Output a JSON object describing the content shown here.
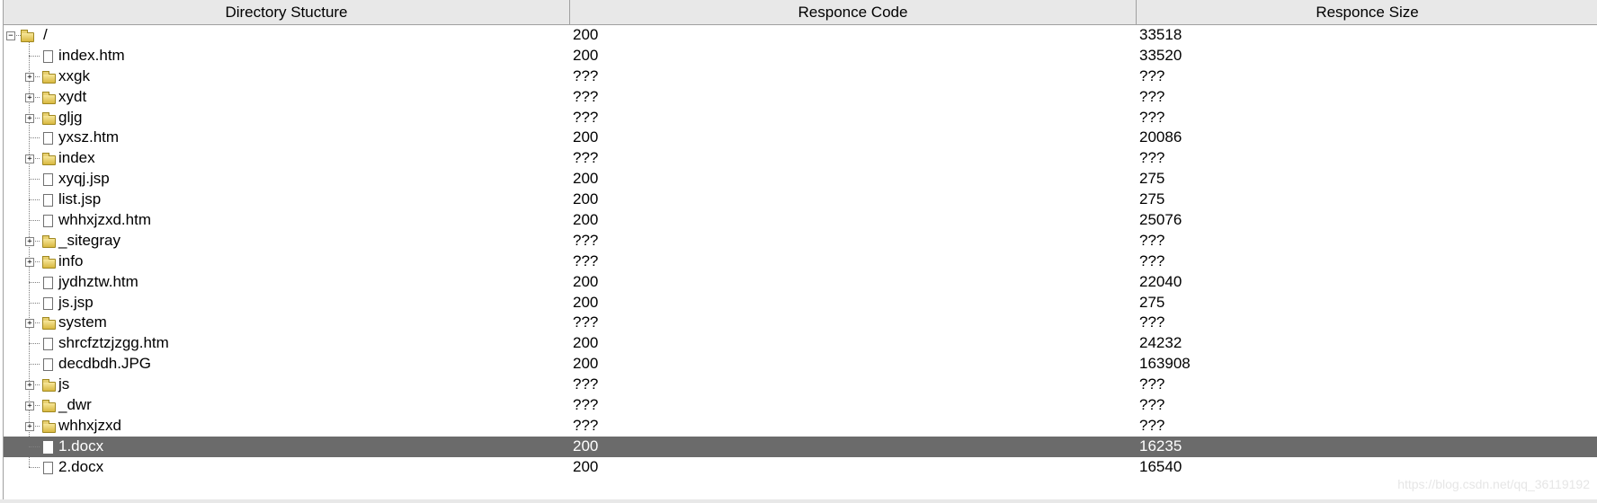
{
  "columns": [
    "Directory Stucture",
    "Responce Code",
    "Responce Size"
  ],
  "selected_row_color": "#6b6b6b",
  "rows": [
    {
      "name": "/",
      "type": "folder-open",
      "code": "200",
      "size": "33518"
    },
    {
      "name": "index.htm",
      "type": "file",
      "code": "200",
      "size": "33520"
    },
    {
      "name": "xxgk",
      "type": "folder",
      "code": "???",
      "size": "???"
    },
    {
      "name": "xydt",
      "type": "folder",
      "code": "???",
      "size": "???"
    },
    {
      "name": "gljg",
      "type": "folder",
      "code": "???",
      "size": "???"
    },
    {
      "name": "yxsz.htm",
      "type": "file",
      "code": "200",
      "size": "20086"
    },
    {
      "name": "index",
      "type": "folder",
      "code": "???",
      "size": "???"
    },
    {
      "name": "xyqj.jsp",
      "type": "file",
      "code": "200",
      "size": "275"
    },
    {
      "name": "list.jsp",
      "type": "file",
      "code": "200",
      "size": "275"
    },
    {
      "name": "whhxjzxd.htm",
      "type": "file",
      "code": "200",
      "size": "25076"
    },
    {
      "name": "_sitegray",
      "type": "folder",
      "code": "???",
      "size": "???"
    },
    {
      "name": "info",
      "type": "folder",
      "code": "???",
      "size": "???"
    },
    {
      "name": "jydhztw.htm",
      "type": "file",
      "code": "200",
      "size": "22040"
    },
    {
      "name": "js.jsp",
      "type": "file",
      "code": "200",
      "size": "275"
    },
    {
      "name": "system",
      "type": "folder",
      "code": "???",
      "size": "???"
    },
    {
      "name": "shrcfztzjzgg.htm",
      "type": "file",
      "code": "200",
      "size": "24232"
    },
    {
      "name": "decdbdh.JPG",
      "type": "file",
      "code": "200",
      "size": "163908"
    },
    {
      "name": "js",
      "type": "folder",
      "code": "???",
      "size": "???"
    },
    {
      "name": "_dwr",
      "type": "folder",
      "code": "???",
      "size": "???"
    },
    {
      "name": "whhxjzxd",
      "type": "folder",
      "code": "???",
      "size": "???"
    },
    {
      "name": "1.docx",
      "type": "file",
      "code": "200",
      "size": "16235",
      "selected": true
    },
    {
      "name": "2.docx",
      "type": "file",
      "code": "200",
      "size": "16540"
    }
  ],
  "watermark": "https://blog.csdn.net/qq_36119192"
}
